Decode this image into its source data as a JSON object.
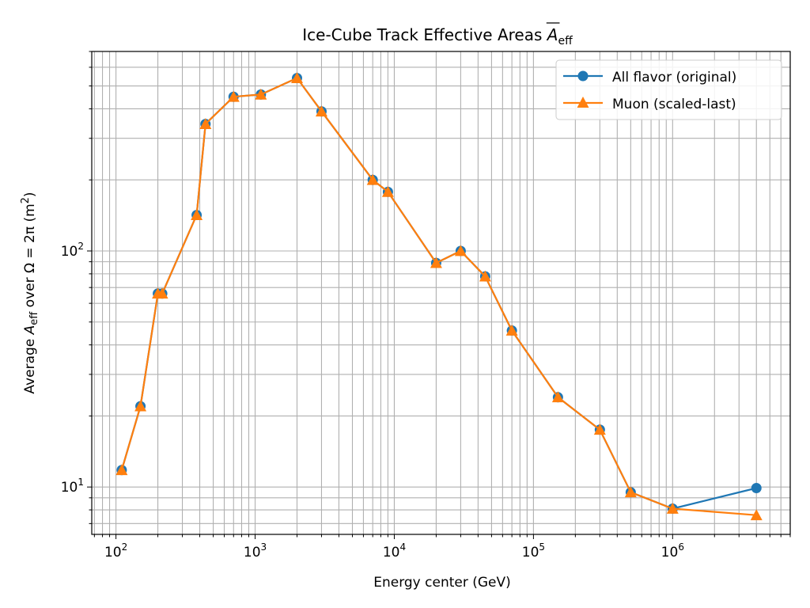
{
  "chart_data": {
    "type": "line",
    "title": "Ice-Cube Track Effective Areas A̅eff",
    "title_parts": {
      "main": "Ice-Cube Track Effective Areas ",
      "symbol": "A",
      "sub": "eff"
    },
    "xlabel": "Energy center (GeV)",
    "ylabel": "Average A̅eff over Ω = 2π (m²)",
    "ylabel_parts": {
      "pre": "Average ",
      "symbol": "A",
      "sub": "eff",
      "post": " over Ω = 2π (m",
      "sup": "2",
      "end": ")"
    },
    "x_scale": "log",
    "y_scale": "log",
    "xlim": [
      67,
      7000000
    ],
    "ylim": [
      6.3,
      700
    ],
    "x_ticks": [
      {
        "value": 100,
        "base": "10",
        "exp": "2"
      },
      {
        "value": 1000,
        "base": "10",
        "exp": "3"
      },
      {
        "value": 10000,
        "base": "10",
        "exp": "4"
      },
      {
        "value": 100000,
        "base": "10",
        "exp": "5"
      },
      {
        "value": 1000000,
        "base": "10",
        "exp": "6"
      }
    ],
    "y_ticks": [
      {
        "value": 10,
        "base": "10",
        "exp": "1"
      },
      {
        "value": 100,
        "base": "10",
        "exp": "2"
      }
    ],
    "grid": true,
    "legend_position": "top-right",
    "x": [
      110,
      150,
      200,
      215,
      380,
      440,
      700,
      1100,
      2000,
      3000,
      7000,
      9000,
      20000,
      30000,
      45000,
      70000,
      150000,
      300000,
      500000,
      1000000,
      4000000
    ],
    "series": [
      {
        "name": "All flavor (original)",
        "color": "#1f77b4",
        "marker": "circle",
        "values": [
          11.8,
          22,
          66,
          66,
          142,
          345,
          450,
          460,
          540,
          390,
          200,
          178,
          89,
          100,
          78,
          46,
          24,
          17.5,
          9.5,
          8.1,
          9.9
        ]
      },
      {
        "name": "Muon (scaled-last)",
        "color": "#ff7f0e",
        "marker": "triangle",
        "values": [
          11.8,
          22,
          66,
          66,
          142,
          345,
          450,
          460,
          540,
          390,
          200,
          178,
          89,
          100,
          78,
          46,
          24,
          17.5,
          9.5,
          8.1,
          7.6
        ]
      }
    ]
  }
}
